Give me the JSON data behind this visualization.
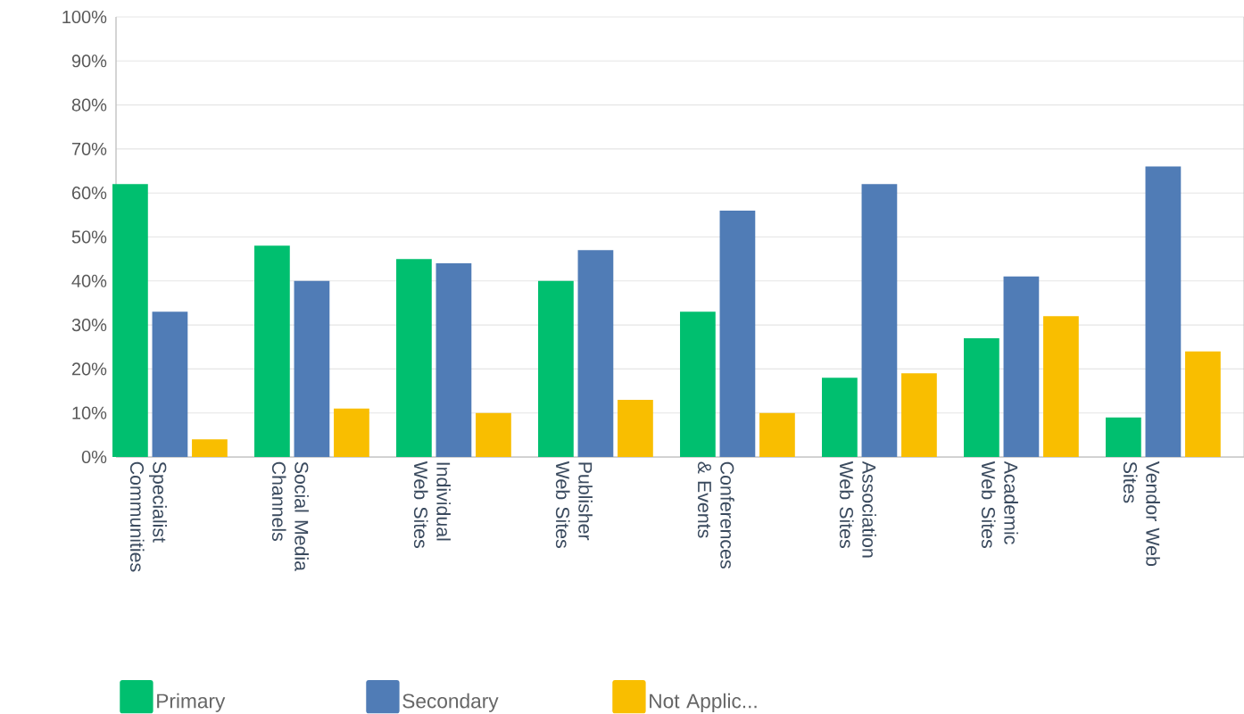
{
  "chart_data": {
    "type": "bar",
    "categories": [
      "Specialist Communities",
      "Social Media Channels",
      "Individual Web Sites",
      "Publisher Web Sites",
      "Conferences & Events",
      "Association Web Sites",
      "Academic Web Sites",
      "Vendor Web Sites"
    ],
    "series": [
      {
        "name": "Primary",
        "color": "#00bf6f",
        "values": [
          62,
          48,
          45,
          40,
          33,
          18,
          27,
          9
        ]
      },
      {
        "name": "Secondary",
        "color": "#507cb6",
        "values": [
          33,
          40,
          44,
          47,
          56,
          62,
          41,
          66
        ]
      },
      {
        "name": "Not Applic...",
        "color": "#f9be00",
        "values": [
          4,
          11,
          10,
          13,
          10,
          19,
          32,
          24
        ]
      }
    ],
    "ylim": [
      0,
      100
    ],
    "yticks": [
      {
        "value": 0,
        "label": "0%"
      },
      {
        "value": 10,
        "label": "10%"
      },
      {
        "value": 20,
        "label": "20%"
      },
      {
        "value": 30,
        "label": "30%"
      },
      {
        "value": 40,
        "label": "40%"
      },
      {
        "value": 50,
        "label": "50%"
      },
      {
        "value": 60,
        "label": "60%"
      },
      {
        "value": 70,
        "label": "70%"
      },
      {
        "value": 80,
        "label": "80%"
      },
      {
        "value": 90,
        "label": "90%"
      },
      {
        "value": 100,
        "label": "100%"
      }
    ],
    "grid": "y",
    "legend": "bottom left"
  }
}
